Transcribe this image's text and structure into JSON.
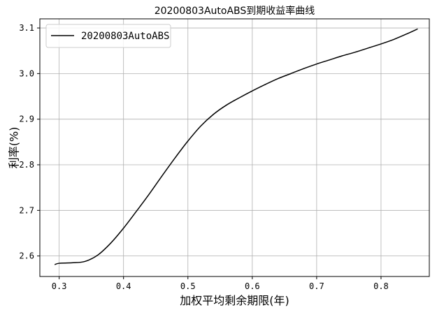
{
  "chart_data": {
    "type": "line",
    "title": "20200803AutoABS到期收益率曲线",
    "xlabel": "加权平均剩余期限(年)",
    "ylabel": "利率(%)",
    "xlim": [
      0.27,
      0.875
    ],
    "ylim": [
      2.555,
      3.12
    ],
    "xticks": [
      0.3,
      0.4,
      0.5,
      0.6,
      0.7,
      0.8
    ],
    "yticks": [
      2.6,
      2.7,
      2.8,
      2.9,
      3.0,
      3.1
    ],
    "xtick_labels": [
      "0.3",
      "0.4",
      "0.5",
      "0.6",
      "0.7",
      "0.8"
    ],
    "ytick_labels": [
      "2.6",
      "2.7",
      "2.8",
      "2.9",
      "3.0",
      "3.1"
    ],
    "grid": true,
    "legend": {
      "position": "top-left",
      "entries": [
        "20200803AutoABS"
      ]
    },
    "series": [
      {
        "name": "20200803AutoABS",
        "color": "#000000",
        "x": [
          0.293,
          0.3,
          0.32,
          0.34,
          0.36,
          0.38,
          0.4,
          0.42,
          0.44,
          0.46,
          0.48,
          0.5,
          0.52,
          0.54,
          0.56,
          0.58,
          0.6,
          0.62,
          0.64,
          0.66,
          0.68,
          0.7,
          0.72,
          0.74,
          0.76,
          0.78,
          0.8,
          0.82,
          0.84,
          0.857
        ],
        "y": [
          2.581,
          2.584,
          2.585,
          2.588,
          2.602,
          2.628,
          2.661,
          2.698,
          2.736,
          2.776,
          2.815,
          2.852,
          2.885,
          2.911,
          2.931,
          2.947,
          2.962,
          2.976,
          2.989,
          3.0,
          3.011,
          3.021,
          3.03,
          3.039,
          3.047,
          3.056,
          3.065,
          3.075,
          3.087,
          3.098
        ]
      }
    ]
  }
}
